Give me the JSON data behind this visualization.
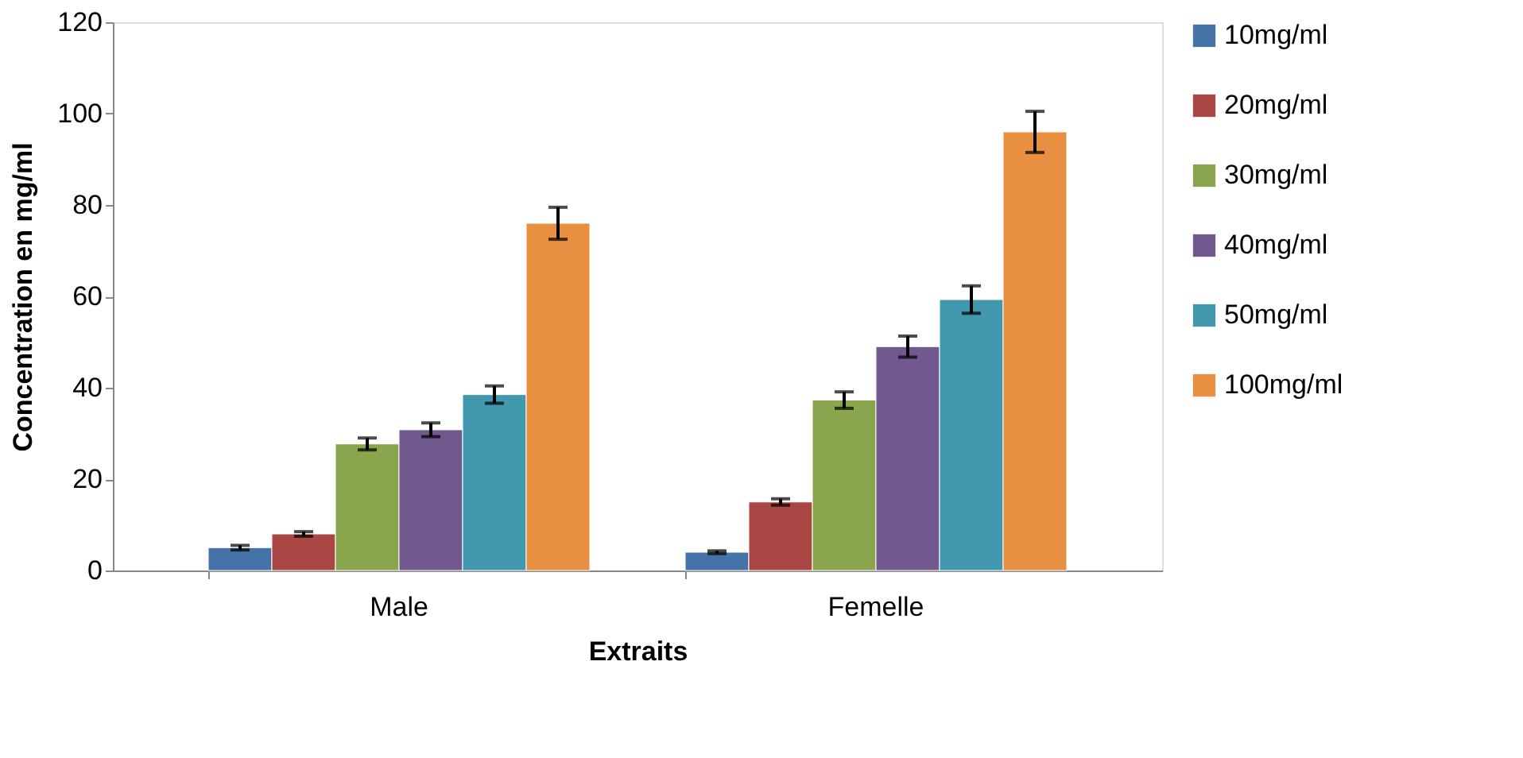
{
  "chart_data": {
    "type": "bar",
    "xlabel": "Extraits",
    "ylabel": "Concentration en mg/ml",
    "categories": [
      "Male",
      "Femelle"
    ],
    "series": [
      {
        "name": "10mg/ml",
        "color": "#4572a7",
        "values": [
          5,
          4
        ],
        "errors": [
          0.5,
          0.3
        ]
      },
      {
        "name": "20mg/ml",
        "color": "#aa4643",
        "values": [
          8,
          15
        ],
        "errors": [
          0.5,
          0.7
        ]
      },
      {
        "name": "30mg/ml",
        "color": "#89a54e",
        "values": [
          27.7,
          37.3
        ],
        "errors": [
          1.3,
          1.8
        ]
      },
      {
        "name": "40mg/ml",
        "color": "#71588f",
        "values": [
          30.8,
          49
        ],
        "errors": [
          1.5,
          2.3
        ]
      },
      {
        "name": "50mg/ml",
        "color": "#4198af",
        "values": [
          38.5,
          59.3
        ],
        "errors": [
          1.9,
          3
        ]
      },
      {
        "name": "100mg/ml",
        "color": "#e88f42",
        "values": [
          76,
          96
        ],
        "errors": [
          3.5,
          4.5
        ]
      }
    ],
    "ylim": [
      0,
      120
    ],
    "yticks": [
      0,
      20,
      40,
      60,
      80,
      100,
      120
    ],
    "grid": false,
    "legend": "right"
  }
}
